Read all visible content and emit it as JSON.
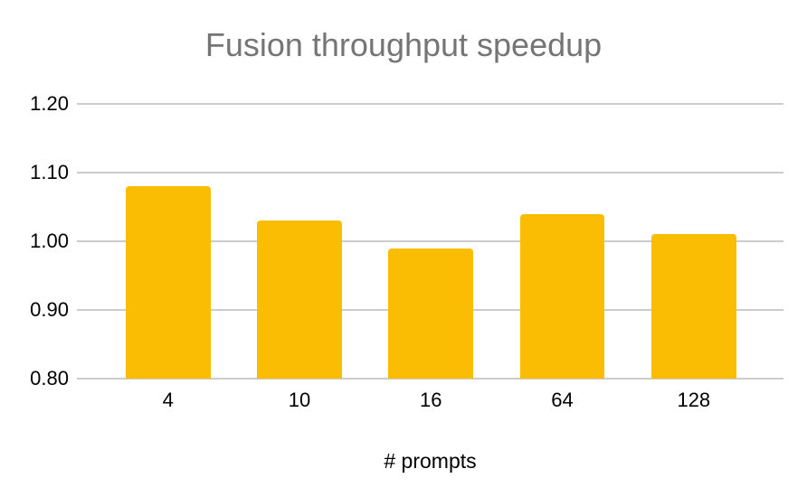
{
  "chart_data": {
    "type": "bar",
    "title": "Fusion throughput speedup",
    "categories": [
      "4",
      "10",
      "16",
      "64",
      "128"
    ],
    "values": [
      1.08,
      1.03,
      0.99,
      1.04,
      1.01
    ],
    "xlabel": "# prompts",
    "ylabel": "",
    "ylim": [
      0.8,
      1.2
    ],
    "ytick_labels_top_to_bottom": [
      "1.20",
      "1.10",
      "1.00",
      "0.90",
      "0.80"
    ],
    "grid": true,
    "legend": "none",
    "colors": {
      "bar": "#FBBC04",
      "title": "#757575",
      "axis_labels": "#000000",
      "gridline": "#CCCCCC",
      "background": "#FFFFFF"
    }
  }
}
